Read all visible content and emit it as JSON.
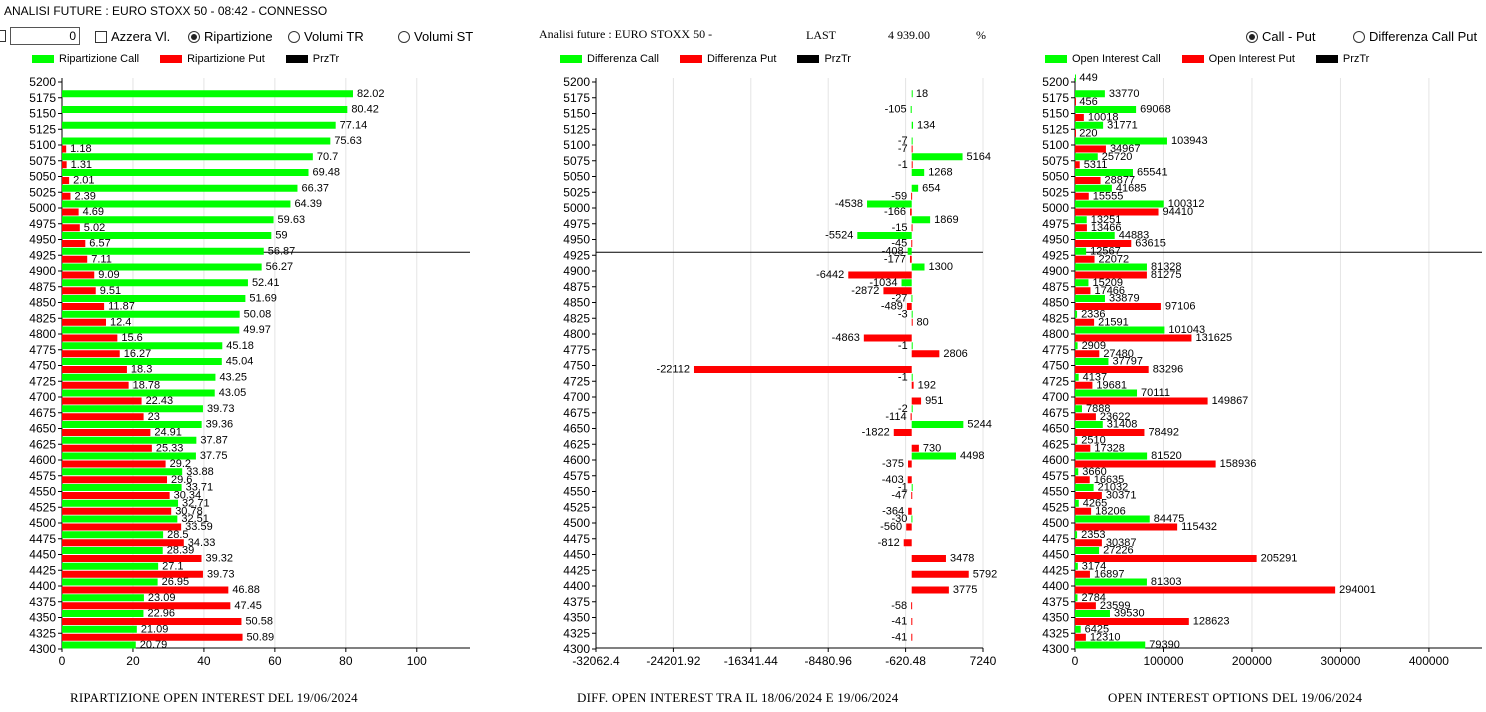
{
  "header": {
    "window_title": "ANALISI FUTURE : EURO STOXX 50 - 08:42 - CONNESSO",
    "numeric_value": "0",
    "azzera_label": "Azzera Vl.",
    "mode_ripartizione": "Ripartizione",
    "mode_volumi_tr": "Volumi TR",
    "mode_volumi_st": "Volumi ST",
    "analysis_label": "Analisi future : EURO STOXX 50 -",
    "last_label": "LAST",
    "last_value": "4 939.00",
    "pct_label": "%",
    "opt_call_put": "Call - Put",
    "opt_diff_call_put": "Differenza Call Put"
  },
  "colors": {
    "call": "#00ff00",
    "put": "#ff0000",
    "prz": "#000000",
    "grid": "#e4e4e4"
  },
  "chart_data": [
    {
      "type": "bar",
      "title": "RIPARTIZIONE OPEN INTEREST DEL 19/06/2024",
      "legend": [
        "Ripartizione Call",
        "Ripartizione Put",
        "PrzTr"
      ],
      "categories": [
        "5200",
        "5175",
        "5150",
        "5125",
        "5100",
        "5075",
        "5050",
        "5025",
        "5000",
        "4975",
        "4950",
        "4925",
        "4900",
        "4875",
        "4850",
        "4825",
        "4800",
        "4775",
        "4750",
        "4725",
        "4700",
        "4675",
        "4650",
        "4625",
        "4600",
        "4575",
        "4550",
        "4525",
        "4500",
        "4475",
        "4450",
        "4425",
        "4400",
        "4375",
        "4350",
        "4325",
        "4300"
      ],
      "series": [
        {
          "name": "Ripartizione Call",
          "values": [
            null,
            82.02,
            80.42,
            77.14,
            75.63,
            70.7,
            69.48,
            66.37,
            64.39,
            59.63,
            59,
            56.87,
            56.27,
            52.41,
            51.69,
            50.08,
            49.97,
            45.18,
            45.04,
            43.25,
            43.05,
            39.73,
            39.36,
            37.87,
            37.75,
            33.88,
            33.71,
            32.71,
            32.51,
            28.5,
            28.39,
            27.1,
            26.95,
            23.09,
            22.96,
            21.09,
            20.79
          ]
        },
        {
          "name": "Ripartizione Put",
          "values": [
            null,
            null,
            null,
            null,
            1.18,
            1.31,
            2.01,
            2.39,
            4.69,
            5.02,
            6.57,
            7.11,
            9.09,
            9.51,
            11.87,
            12.4,
            15.6,
            16.27,
            18.3,
            18.78,
            22.43,
            23,
            24.91,
            25.33,
            29.2,
            29.6,
            30.34,
            30.78,
            33.59,
            34.33,
            39.32,
            39.73,
            46.88,
            47.45,
            50.58,
            50.89,
            null
          ]
        }
      ],
      "xticks": [
        "0",
        "20",
        "40",
        "60",
        "80",
        "100"
      ],
      "xlim": [
        0,
        115
      ],
      "prztr_strike": "4925"
    },
    {
      "type": "bar",
      "title": "DIFF. OPEN INTEREST TRA IL 18/06/2024 E 19/06/2024",
      "legend": [
        "Differenza Call",
        "Differenza Put",
        "PrzTr"
      ],
      "categories": [
        "5200",
        "5175",
        "5150",
        "5125",
        "5100",
        "5075",
        "5050",
        "5025",
        "5000",
        "4975",
        "4950",
        "4925",
        "4900",
        "4875",
        "4850",
        "4825",
        "4800",
        "4775",
        "4750",
        "4725",
        "4700",
        "4675",
        "4650",
        "4625",
        "4600",
        "4575",
        "4550",
        "4525",
        "4500",
        "4475",
        "4450",
        "4425",
        "4400",
        "4375",
        "4350",
        "4325",
        "4300"
      ],
      "series": [
        {
          "name": "Differenza Call",
          "values": [
            null,
            18,
            -105,
            134,
            -7,
            5164,
            1268,
            654,
            -4538,
            1869,
            -5524,
            -408,
            1300,
            -1034,
            -27,
            -3,
            null,
            -1,
            null,
            -1,
            null,
            -2,
            5244,
            null,
            4498,
            null,
            -1,
            null,
            -30,
            null,
            null,
            null,
            null,
            null,
            null,
            null,
            null
          ]
        },
        {
          "name": "Differenza Put",
          "values": [
            null,
            null,
            null,
            null,
            -7,
            -1,
            null,
            -59,
            -166,
            -15,
            -45,
            -177,
            -6442,
            -2872,
            -489,
            80,
            -4863,
            2806,
            -22112,
            192,
            951,
            -114,
            -1822,
            730,
            -375,
            -403,
            -47,
            -364,
            -560,
            -812,
            3478,
            5792,
            3775,
            -58,
            -41,
            -41,
            null
          ]
        }
      ],
      "xticks": [
        "-32062.4",
        "-24201.92",
        "-16341.44",
        "-8480.96",
        "-620.48",
        "7240"
      ],
      "xlim": [
        -32062.4,
        7240
      ],
      "prztr_strike": "4925"
    },
    {
      "type": "bar",
      "title": "OPEN INTEREST OPTIONS DEL 19/06/2024",
      "legend": [
        "Open Interest Call",
        "Open Interest Put",
        "PrzTr"
      ],
      "categories": [
        "5200",
        "5175",
        "5150",
        "5125",
        "5100",
        "5075",
        "5050",
        "5025",
        "5000",
        "4975",
        "4950",
        "4925",
        "4900",
        "4875",
        "4850",
        "4825",
        "4800",
        "4775",
        "4750",
        "4725",
        "4700",
        "4675",
        "4650",
        "4625",
        "4600",
        "4575",
        "4550",
        "4525",
        "4500",
        "4475",
        "4450",
        "4425",
        "4400",
        "4375",
        "4350",
        "4325",
        "4300"
      ],
      "series": [
        {
          "name": "Open Interest Call",
          "values": [
            449,
            33770,
            69068,
            31771,
            103943,
            25720,
            65541,
            41685,
            100312,
            13251,
            44883,
            12567,
            81328,
            15209,
            33879,
            2336,
            101043,
            2909,
            37797,
            4137,
            70111,
            7888,
            31408,
            2510,
            81520,
            3660,
            21032,
            4265,
            84475,
            2353,
            27226,
            3174,
            81303,
            2784,
            39530,
            6425,
            79390
          ]
        },
        {
          "name": "Open Interest Put",
          "values": [
            null,
            456,
            10018,
            220,
            34967,
            5311,
            28877,
            15555,
            94410,
            13466,
            63615,
            22072,
            81275,
            17466,
            97106,
            21591,
            131625,
            27480,
            83296,
            19681,
            149867,
            23622,
            78492,
            17328,
            158936,
            16635,
            30371,
            18206,
            115432,
            30387,
            205291,
            16897,
            294001,
            23599,
            128623,
            12310,
            null
          ]
        }
      ],
      "xticks": [
        "0",
        "100000",
        "200000",
        "300000",
        "400000"
      ],
      "xlim": [
        0,
        460000
      ],
      "prztr_strike": "4925"
    }
  ]
}
